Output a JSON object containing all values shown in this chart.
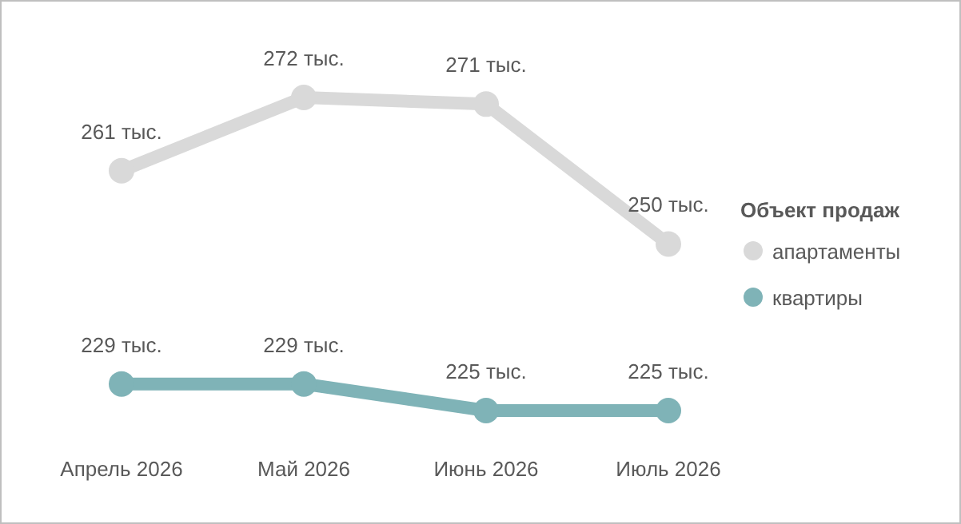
{
  "chart_data": {
    "type": "line",
    "categories": [
      "Апрель 2026",
      "Май 2026",
      "Июнь 2026",
      "Июль 2026"
    ],
    "series": [
      {
        "name": "апартаменты",
        "color": "#d9d9d9",
        "values": [
          261,
          272,
          271,
          250
        ],
        "value_labels": [
          "261 тыс.",
          "272 тыс.",
          "271 тыс.",
          "250 тыс."
        ]
      },
      {
        "name": "квартиры",
        "color": "#7fb3b7",
        "values": [
          229,
          229,
          225,
          225
        ],
        "value_labels": [
          "229 тыс.",
          "229 тыс.",
          "225 тыс.",
          "225 тыс."
        ]
      }
    ],
    "legend": "right",
    "legend_title": "Объект продаж",
    "marker": "circle",
    "line_style": "solid"
  }
}
